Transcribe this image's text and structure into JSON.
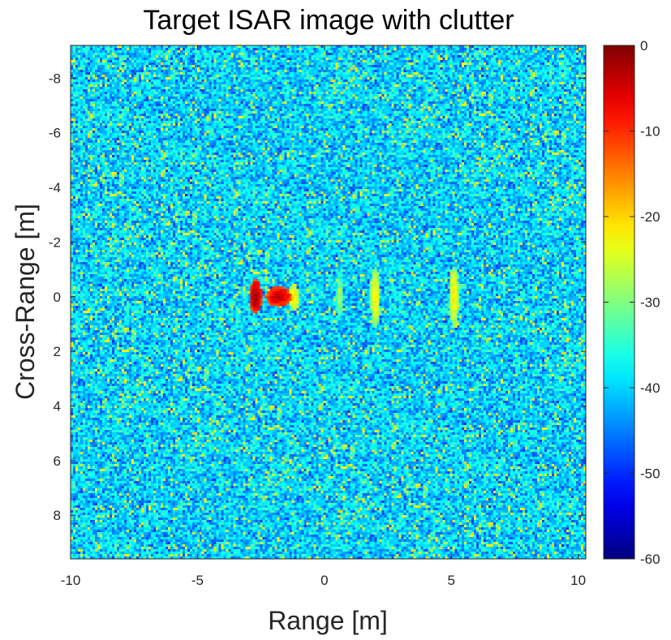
{
  "chart_data": {
    "type": "heatmap",
    "title": "Target ISAR image with clutter",
    "xlabel": "Range [m]",
    "ylabel": "Cross-Range [m]",
    "xlim": [
      -10,
      10.3
    ],
    "ylim": [
      -9.2,
      9.6
    ],
    "y_reversed": true,
    "x_ticks": [
      -10,
      -5,
      0,
      5,
      10
    ],
    "y_ticks": [
      -8,
      -6,
      -4,
      -2,
      0,
      2,
      4,
      6,
      8
    ],
    "colorbar": {
      "colormap": "jet",
      "clim": [
        -60,
        0
      ],
      "ticks": [
        0,
        -10,
        -20,
        -30,
        -40,
        -50,
        -60
      ]
    },
    "background_clutter_db_range": [
      -50,
      -30
    ],
    "scatterers": [
      {
        "range": -2.7,
        "cross_range": 0.0,
        "peak_db": 0,
        "extent_range": 0.4,
        "extent_cross": 1.0
      },
      {
        "range": -1.8,
        "cross_range": 0.0,
        "peak_db": -2,
        "extent_range": 0.8,
        "extent_cross": 0.6
      },
      {
        "range": -1.2,
        "cross_range": 0.0,
        "peak_db": -18,
        "extent_range": 0.3,
        "extent_cross": 0.8
      },
      {
        "range": 0.6,
        "cross_range": 0.0,
        "peak_db": -26,
        "extent_range": 0.2,
        "extent_cross": 1.4
      },
      {
        "range": 2.0,
        "cross_range": 0.0,
        "peak_db": -20,
        "extent_range": 0.3,
        "extent_cross": 1.8
      },
      {
        "range": 5.1,
        "cross_range": 0.0,
        "peak_db": -20,
        "extent_range": 0.3,
        "extent_cross": 1.8
      }
    ]
  }
}
